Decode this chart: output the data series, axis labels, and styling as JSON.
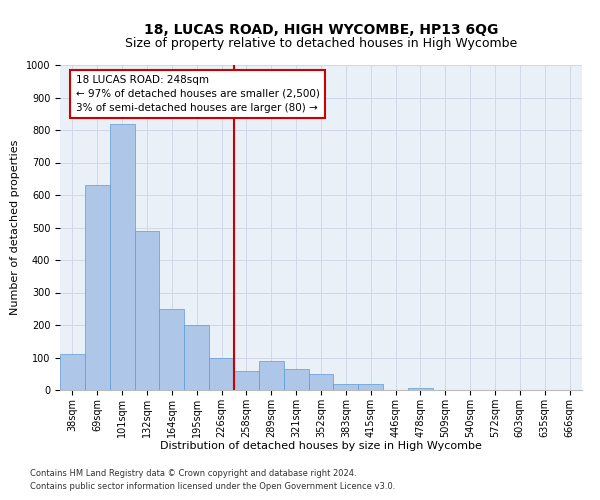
{
  "title": "18, LUCAS ROAD, HIGH WYCOMBE, HP13 6QG",
  "subtitle": "Size of property relative to detached houses in High Wycombe",
  "xlabel": "Distribution of detached houses by size in High Wycombe",
  "ylabel": "Number of detached properties",
  "footer_line1": "Contains HM Land Registry data © Crown copyright and database right 2024.",
  "footer_line2": "Contains public sector information licensed under the Open Government Licence v3.0.",
  "annotation_line1": "18 LUCAS ROAD: 248sqm",
  "annotation_line2": "← 97% of detached houses are smaller (2,500)",
  "annotation_line3": "3% of semi-detached houses are larger (80) →",
  "bar_labels": [
    "38sqm",
    "69sqm",
    "101sqm",
    "132sqm",
    "164sqm",
    "195sqm",
    "226sqm",
    "258sqm",
    "289sqm",
    "321sqm",
    "352sqm",
    "383sqm",
    "415sqm",
    "446sqm",
    "478sqm",
    "509sqm",
    "540sqm",
    "572sqm",
    "603sqm",
    "635sqm",
    "666sqm"
  ],
  "bar_values": [
    110,
    630,
    820,
    490,
    250,
    200,
    100,
    60,
    90,
    65,
    50,
    20,
    20,
    0,
    5,
    0,
    0,
    0,
    0,
    0,
    0
  ],
  "bar_color": "#aec6e8",
  "bar_edge_color": "#5b9bd5",
  "grid_color": "#d0d8e8",
  "background_color": "#eaf0f8",
  "vline_x_index": 7,
  "vline_color": "#cc0000",
  "ylim": [
    0,
    1000
  ],
  "yticks": [
    0,
    100,
    200,
    300,
    400,
    500,
    600,
    700,
    800,
    900,
    1000
  ],
  "annotation_box_facecolor": "#ffffff",
  "annotation_box_edgecolor": "#cc0000",
  "title_fontsize": 10,
  "subtitle_fontsize": 9,
  "ylabel_fontsize": 8,
  "xlabel_fontsize": 8,
  "tick_fontsize": 7,
  "annotation_fontsize": 7.5,
  "footer_fontsize": 6
}
